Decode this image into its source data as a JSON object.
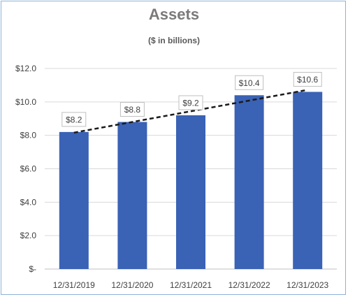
{
  "chart_data": {
    "type": "bar",
    "title": "Assets",
    "subtitle": "($ in billions)",
    "categories": [
      "12/31/2019",
      "12/31/2020",
      "12/31/2021",
      "12/31/2022",
      "12/31/2023"
    ],
    "values": [
      8.2,
      8.8,
      9.2,
      10.4,
      10.6
    ],
    "data_labels": [
      "$8.2",
      "$8.8",
      "$9.2",
      "$10.4",
      "$10.6"
    ],
    "ylim": [
      0,
      12
    ],
    "y_ticks": [
      0,
      2,
      4,
      6,
      8,
      10,
      12
    ],
    "y_tick_labels": [
      "$-",
      "$2.0",
      "$4.0",
      "$6.0",
      "$8.0",
      "$10.0",
      "$12.0"
    ],
    "trendline": {
      "style": "dashed",
      "type": "linear"
    },
    "grid": true,
    "legend": "none",
    "colors": {
      "bar": "#3a62b5",
      "trend": "#1a1a1a",
      "grid": "#d9d9d9",
      "frame": "#8db3d9"
    }
  }
}
